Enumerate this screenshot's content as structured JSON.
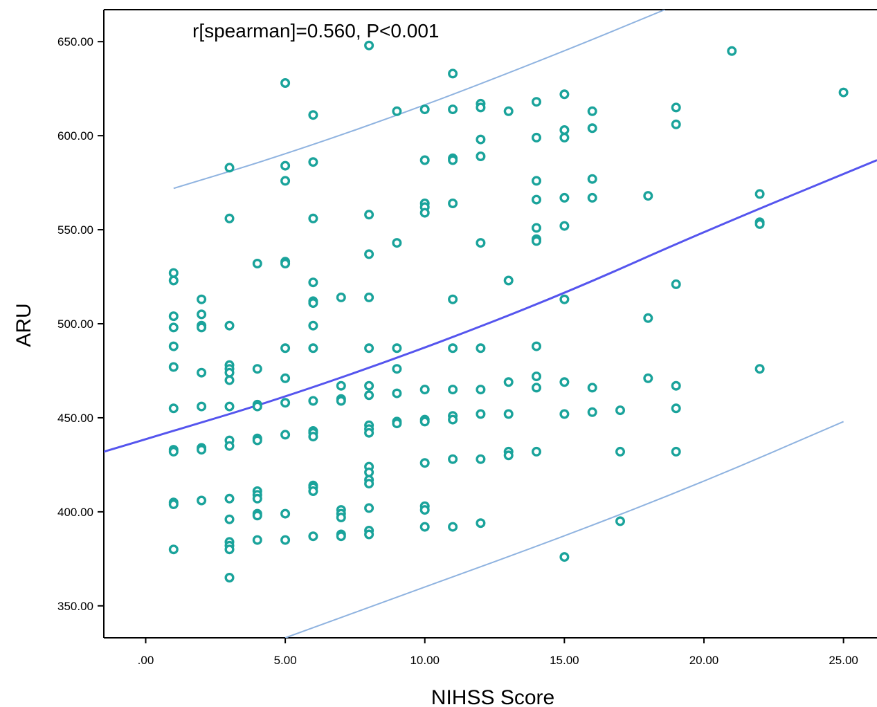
{
  "chart_data": {
    "type": "scatter",
    "title": "",
    "annotation": "r[spearman]=0.560, P<0.001",
    "xlabel": "NIHSS Score",
    "ylabel": "ARU",
    "xlim": [
      -1.5,
      26.2
    ],
    "ylim": [
      333,
      667
    ],
    "x_ticks": [
      0,
      5,
      10,
      15,
      20,
      25
    ],
    "x_tick_labels": [
      ".00",
      "5.00",
      "10.00",
      "15.00",
      "20.00",
      "25.00"
    ],
    "y_ticks": [
      350,
      400,
      450,
      500,
      550,
      600,
      650
    ],
    "y_tick_labels": [
      "350.00",
      "400.00",
      "450.00",
      "500.00",
      "550.00",
      "600.00",
      "650.00"
    ],
    "grid": false,
    "colors": {
      "points": "#1aa39b",
      "fit_line": "#5555ee",
      "ci_line": "#8fb3e0",
      "axis": "#000000"
    },
    "points": [
      [
        1,
        527
      ],
      [
        1,
        523
      ],
      [
        1,
        504
      ],
      [
        1,
        498
      ],
      [
        1,
        488
      ],
      [
        1,
        477
      ],
      [
        1,
        455
      ],
      [
        1,
        433
      ],
      [
        1,
        432
      ],
      [
        1,
        405
      ],
      [
        1,
        404
      ],
      [
        1,
        380
      ],
      [
        2,
        513
      ],
      [
        2,
        505
      ],
      [
        2,
        499
      ],
      [
        2,
        498
      ],
      [
        2,
        474
      ],
      [
        2,
        456
      ],
      [
        2,
        434
      ],
      [
        2,
        433
      ],
      [
        2,
        406
      ],
      [
        3,
        583
      ],
      [
        3,
        556
      ],
      [
        3,
        499
      ],
      [
        3,
        478
      ],
      [
        3,
        476
      ],
      [
        3,
        474
      ],
      [
        3,
        470
      ],
      [
        3,
        456
      ],
      [
        3,
        438
      ],
      [
        3,
        435
      ],
      [
        3,
        407
      ],
      [
        3,
        396
      ],
      [
        3,
        384
      ],
      [
        3,
        382
      ],
      [
        3,
        380
      ],
      [
        3,
        365
      ],
      [
        4,
        532
      ],
      [
        4,
        476
      ],
      [
        4,
        457
      ],
      [
        4,
        456
      ],
      [
        4,
        439
      ],
      [
        4,
        438
      ],
      [
        4,
        411
      ],
      [
        4,
        409
      ],
      [
        4,
        407
      ],
      [
        4,
        399
      ],
      [
        4,
        398
      ],
      [
        4,
        385
      ],
      [
        5,
        628
      ],
      [
        5,
        584
      ],
      [
        5,
        576
      ],
      [
        5,
        533
      ],
      [
        5,
        532
      ],
      [
        5,
        487
      ],
      [
        5,
        471
      ],
      [
        5,
        458
      ],
      [
        5,
        441
      ],
      [
        5,
        399
      ],
      [
        5,
        385
      ],
      [
        6,
        611
      ],
      [
        6,
        586
      ],
      [
        6,
        556
      ],
      [
        6,
        522
      ],
      [
        6,
        512
      ],
      [
        6,
        511
      ],
      [
        6,
        499
      ],
      [
        6,
        487
      ],
      [
        6,
        459
      ],
      [
        6,
        443
      ],
      [
        6,
        442
      ],
      [
        6,
        440
      ],
      [
        6,
        414
      ],
      [
        6,
        413
      ],
      [
        6,
        411
      ],
      [
        6,
        387
      ],
      [
        7,
        514
      ],
      [
        7,
        467
      ],
      [
        7,
        460
      ],
      [
        7,
        459
      ],
      [
        7,
        401
      ],
      [
        7,
        399
      ],
      [
        7,
        397
      ],
      [
        7,
        388
      ],
      [
        7,
        387
      ],
      [
        8,
        648
      ],
      [
        8,
        558
      ],
      [
        8,
        537
      ],
      [
        8,
        514
      ],
      [
        8,
        487
      ],
      [
        8,
        467
      ],
      [
        8,
        462
      ],
      [
        8,
        446
      ],
      [
        8,
        444
      ],
      [
        8,
        442
      ],
      [
        8,
        424
      ],
      [
        8,
        421
      ],
      [
        8,
        417
      ],
      [
        8,
        415
      ],
      [
        8,
        402
      ],
      [
        8,
        390
      ],
      [
        8,
        388
      ],
      [
        9,
        613
      ],
      [
        9,
        543
      ],
      [
        9,
        487
      ],
      [
        9,
        476
      ],
      [
        9,
        463
      ],
      [
        9,
        448
      ],
      [
        9,
        447
      ],
      [
        10,
        614
      ],
      [
        10,
        587
      ],
      [
        10,
        564
      ],
      [
        10,
        562
      ],
      [
        10,
        559
      ],
      [
        10,
        465
      ],
      [
        10,
        449
      ],
      [
        10,
        448
      ],
      [
        10,
        426
      ],
      [
        10,
        403
      ],
      [
        10,
        401
      ],
      [
        10,
        392
      ],
      [
        11,
        633
      ],
      [
        11,
        614
      ],
      [
        11,
        588
      ],
      [
        11,
        587
      ],
      [
        11,
        564
      ],
      [
        11,
        513
      ],
      [
        11,
        487
      ],
      [
        11,
        465
      ],
      [
        11,
        451
      ],
      [
        11,
        449
      ],
      [
        11,
        428
      ],
      [
        11,
        392
      ],
      [
        12,
        617
      ],
      [
        12,
        615
      ],
      [
        12,
        598
      ],
      [
        12,
        589
      ],
      [
        12,
        543
      ],
      [
        12,
        487
      ],
      [
        12,
        465
      ],
      [
        12,
        452
      ],
      [
        12,
        428
      ],
      [
        12,
        394
      ],
      [
        13,
        613
      ],
      [
        13,
        523
      ],
      [
        13,
        469
      ],
      [
        13,
        452
      ],
      [
        13,
        432
      ],
      [
        13,
        430
      ],
      [
        14,
        618
      ],
      [
        14,
        599
      ],
      [
        14,
        576
      ],
      [
        14,
        566
      ],
      [
        14,
        551
      ],
      [
        14,
        545
      ],
      [
        14,
        544
      ],
      [
        14,
        488
      ],
      [
        14,
        472
      ],
      [
        14,
        466
      ],
      [
        14,
        432
      ],
      [
        15,
        622
      ],
      [
        15,
        603
      ],
      [
        15,
        599
      ],
      [
        15,
        567
      ],
      [
        15,
        552
      ],
      [
        15,
        513
      ],
      [
        15,
        469
      ],
      [
        15,
        452
      ],
      [
        15,
        376
      ],
      [
        16,
        613
      ],
      [
        16,
        604
      ],
      [
        16,
        577
      ],
      [
        16,
        567
      ],
      [
        16,
        466
      ],
      [
        16,
        453
      ],
      [
        17,
        454
      ],
      [
        17,
        432
      ],
      [
        17,
        395
      ],
      [
        18,
        568
      ],
      [
        18,
        503
      ],
      [
        18,
        471
      ],
      [
        19,
        615
      ],
      [
        19,
        606
      ],
      [
        19,
        521
      ],
      [
        19,
        467
      ],
      [
        19,
        455
      ],
      [
        19,
        432
      ],
      [
        21,
        645
      ],
      [
        22,
        569
      ],
      [
        22,
        554
      ],
      [
        22,
        553
      ],
      [
        22,
        476
      ],
      [
        25,
        623
      ]
    ],
    "fit_line": [
      [
        -1.5,
        432
      ],
      [
        1,
        443
      ],
      [
        5,
        461
      ],
      [
        10,
        487
      ],
      [
        15,
        516
      ],
      [
        20,
        549
      ],
      [
        26.2,
        587
      ]
    ],
    "ci_upper": [
      [
        1,
        572
      ],
      [
        5,
        590
      ],
      [
        10,
        616
      ],
      [
        15,
        645
      ],
      [
        18.6,
        667
      ]
    ],
    "ci_lower": [
      [
        5,
        333
      ],
      [
        10,
        360
      ],
      [
        15,
        387
      ],
      [
        20,
        416
      ],
      [
        25,
        448
      ]
    ]
  }
}
